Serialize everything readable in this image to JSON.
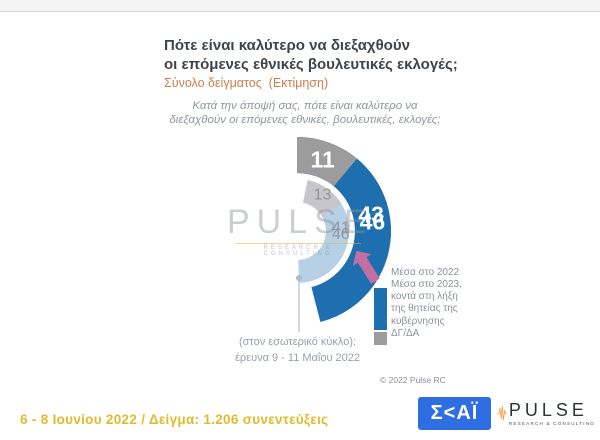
{
  "header": {
    "title": "Πότε είναι καλύτερο να διεξαχθούν\nοι επόμενες εθνικές βουλευτικές εκλογές;",
    "subtitle": "Σύνολο δείγματος  (Εκτίμηση)",
    "question": "Κατά την άποψή σας, πότε είναι καλύτερο να\nδιεξαχθούν οι επόμενες εθνικές, βουλευτικές, εκλογές;"
  },
  "chart_data": {
    "type": "pie",
    "subtype": "double_donut",
    "title": "Πότε είναι καλύτερο να διεξαχθούν οι επόμενες εθνικές βουλευτικές εκλογές;",
    "categories": [
      "Μέσα στο 2022",
      "Μέσα στο 2023, κοντά στη λήξη της θητείας της κυβέρνησης",
      "ΔΓ/ΔΑ"
    ],
    "series": [
      {
        "name": "Εξωτερικός κύκλος: έρευνα 6 - 8 Ιουνίου 2022",
        "ring": "outer",
        "values": [
          43,
          46,
          11
        ],
        "colors": [
          "#c26fa4",
          "#1d6fb0",
          "#9c9c9c"
        ],
        "label_color": "#ffffff",
        "start_angle_deg": 0
      },
      {
        "name": "Εσωτερικός κύκλος: έρευνα 9 - 11 Μαΐου 2022",
        "ring": "inner",
        "values": [
          41,
          46,
          13
        ],
        "colors": [
          "#e6c6da",
          "#b6d1e6",
          "#c7c7c9"
        ],
        "label_color": "#95959a",
        "start_angle_deg": 12
      }
    ],
    "legend_position": "right",
    "units": "percent"
  },
  "legend": {
    "items": [
      {
        "label": "Μέσα στο 2022"
      },
      {
        "label": "Μέσα στο 2023,\nκοντά στη λήξη\nτης θητείας της\nκυβέρνησης"
      },
      {
        "label": "ΔΓ/ΔΑ"
      }
    ]
  },
  "note": "(στον εσωτερικό κύκλο):\nέρευνα 9 - 11 Μαΐου 2022",
  "copyright": "© 2022 Pulse RC",
  "footer": {
    "date_sample": "6 - 8 Ιουνίου  2022  /  Δείγμα:  1.206 συνεντεύξεις"
  },
  "logos": {
    "skai_text": "Σ<ΑΪ",
    "pulse_name": "PULSE",
    "pulse_tagline": "RESEARCH & CONSULTING"
  },
  "watermark": {
    "name": "PULSE",
    "tagline": "RESEARCH & CONSULTING"
  },
  "colors": {
    "accent_orange": "#cf7e4b",
    "footer_yellow": "#e0bb2d",
    "skai_blue": "#2f6de2",
    "pulse_wave_orange": "#f29a2e"
  }
}
